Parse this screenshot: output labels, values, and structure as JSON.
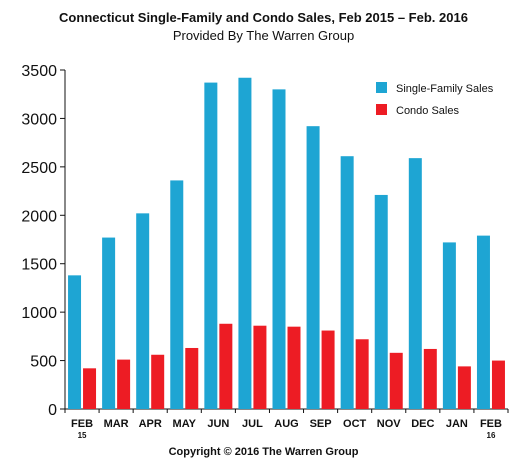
{
  "chart_data": {
    "type": "bar",
    "title": "Connecticut Single-Family and Condo Sales, Feb 2015 – Feb. 2016",
    "subtitle": "Provided By The Warren Group",
    "footer": "Copyright © 2016 The Warren Group",
    "categories": [
      "FEB",
      "MAR",
      "APR",
      "MAY",
      "JUN",
      "JUL",
      "AUG",
      "SEP",
      "OCT",
      "NOV",
      "DEC",
      "JAN",
      "FEB"
    ],
    "category_sublabels": [
      "15",
      "",
      "",
      "",
      "",
      "",
      "",
      "",
      "",
      "",
      "",
      "",
      "16"
    ],
    "series": [
      {
        "name": "Single-Family Sales",
        "color": "#1ea5d3",
        "values": [
          1380,
          1770,
          2020,
          2360,
          3370,
          3420,
          3300,
          2920,
          2610,
          2210,
          2590,
          1720,
          1790
        ]
      },
      {
        "name": "Condo Sales",
        "color": "#ed1c24",
        "values": [
          420,
          510,
          560,
          630,
          880,
          860,
          850,
          810,
          720,
          580,
          620,
          440,
          500
        ]
      }
    ],
    "ylim": [
      0,
      3500
    ],
    "yticks": [
      0,
      500,
      1000,
      1500,
      2000,
      2500,
      3000,
      3500
    ],
    "grid": false,
    "legend_position": "top-right"
  }
}
